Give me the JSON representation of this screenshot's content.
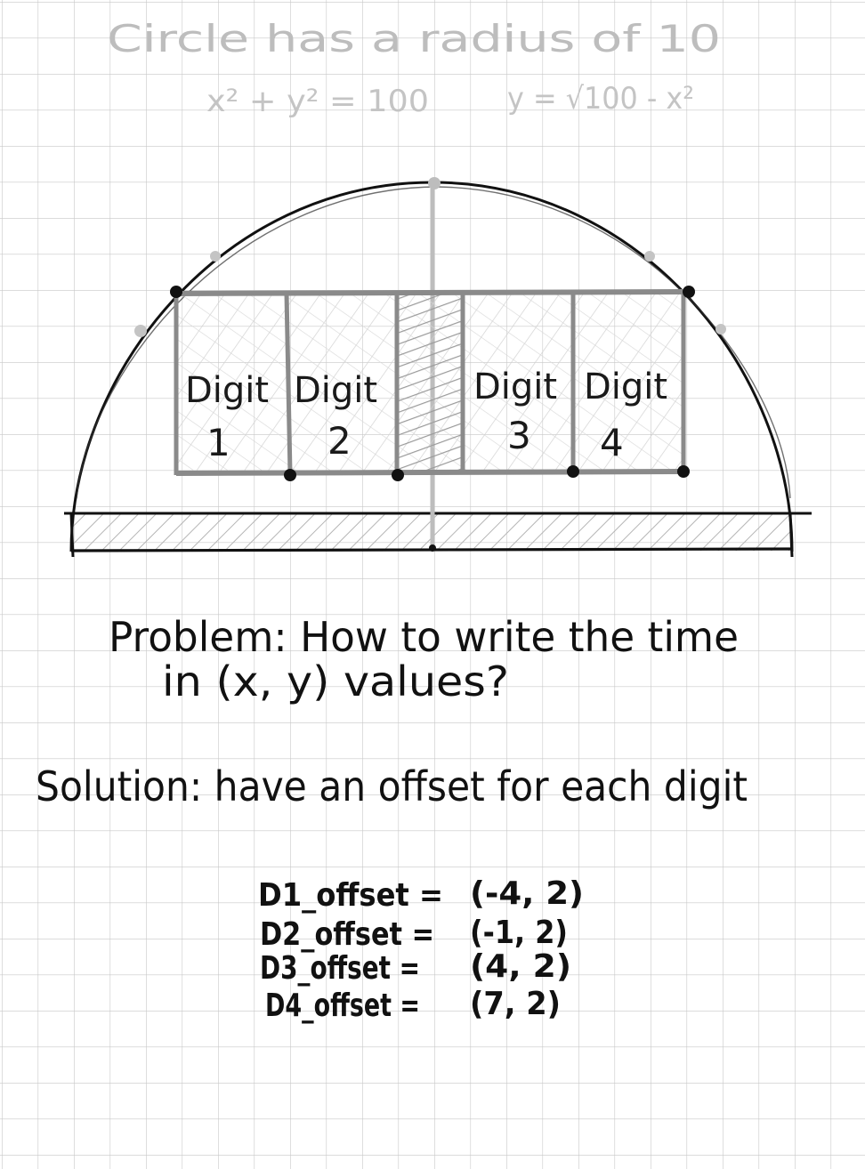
{
  "header": {
    "line1": "Circle has a radius of 10",
    "eq_left": "x² + y² = 100",
    "eq_right": "y = √100 - x²"
  },
  "diagram": {
    "digits": [
      {
        "label": "Digit",
        "number": "1"
      },
      {
        "label": "Digit",
        "number": "2"
      },
      {
        "label": "Digit",
        "number": "3"
      },
      {
        "label": "Digit",
        "number": "4"
      }
    ]
  },
  "problem": {
    "line1": "Problem: How to write the time",
    "line2": "in (x, y) values?"
  },
  "solution": {
    "text": "Solution: have an offset for each digit"
  },
  "offsets": [
    {
      "name": "D1_offset =",
      "value": "(-4, 2)"
    },
    {
      "name": "D2_offset =",
      "value": "(-1, 2)"
    },
    {
      "name": "D3_offset =",
      "value": "(4, 2)"
    },
    {
      "name": "D4_offset =",
      "value": "(7, 2)"
    }
  ]
}
